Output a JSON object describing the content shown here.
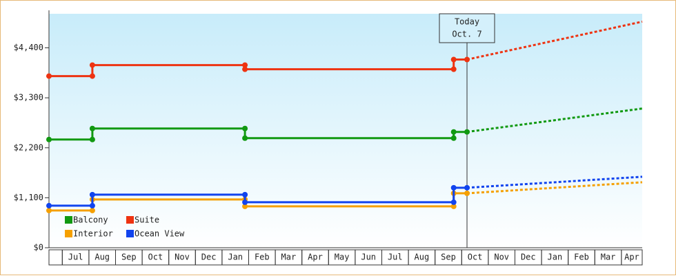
{
  "chart_data": {
    "type": "step-line",
    "categories": [
      null,
      "Jul",
      "Aug",
      "Sep",
      "Oct",
      "Nov",
      "Dec",
      "Jan",
      "Feb",
      "Mar",
      "Apr",
      "May",
      "Jun",
      "Jul",
      "Aug",
      "Sep",
      "Oct",
      "Nov",
      "Dec",
      "Jan",
      "Feb",
      "Mar",
      "Apr"
    ],
    "xlim": [
      0,
      22.28
    ],
    "ylim": [
      0,
      5150
    ],
    "yticks": [
      {
        "value": 0,
        "label": "$0"
      },
      {
        "value": 1100,
        "label": "$1,100"
      },
      {
        "value": 2200,
        "label": "$2,200"
      },
      {
        "value": 3300,
        "label": "$3,300"
      },
      {
        "value": 4400,
        "label": "$4,400"
      }
    ],
    "today": {
      "x": 15.7,
      "label": "Today",
      "date": "Oct. 7"
    },
    "series": [
      {
        "name": "Balcony",
        "color": "#119911",
        "x": [
          0,
          1.63,
          1.63,
          7.36,
          7.36,
          15.2,
          15.2,
          15.7
        ],
        "values": [
          2382,
          2382,
          2624,
          2624,
          2412,
          2412,
          2549,
          2549
        ],
        "projection_x": [
          15.7,
          22.28
        ],
        "projection_values": [
          2549,
          3064
        ]
      },
      {
        "name": "Suite",
        "color": "#ee3311",
        "x": [
          0,
          1.63,
          1.63,
          7.36,
          7.36,
          15.2,
          15.2,
          15.7
        ],
        "values": [
          3778,
          3778,
          4020,
          4020,
          3929,
          3929,
          4142,
          4142
        ],
        "projection_x": [
          15.7,
          22.28
        ],
        "projection_values": [
          4142,
          4976
        ]
      },
      {
        "name": "Interior",
        "color": "#f5a000",
        "x": [
          0,
          1.63,
          1.63,
          7.36,
          7.36,
          15.2,
          15.2,
          15.7
        ],
        "values": [
          819,
          819,
          1062,
          1062,
          910,
          910,
          1198,
          1198
        ],
        "projection_x": [
          15.7,
          22.28
        ],
        "projection_values": [
          1198,
          1441
        ]
      },
      {
        "name": "Ocean View",
        "color": "#1144ee",
        "x": [
          0,
          1.63,
          1.63,
          7.36,
          7.36,
          15.2,
          15.2,
          15.7
        ],
        "values": [
          925,
          925,
          1168,
          1168,
          1001,
          1001,
          1320,
          1320
        ],
        "projection_x": [
          15.7,
          22.28
        ],
        "projection_values": [
          1320,
          1562
        ]
      }
    ]
  }
}
